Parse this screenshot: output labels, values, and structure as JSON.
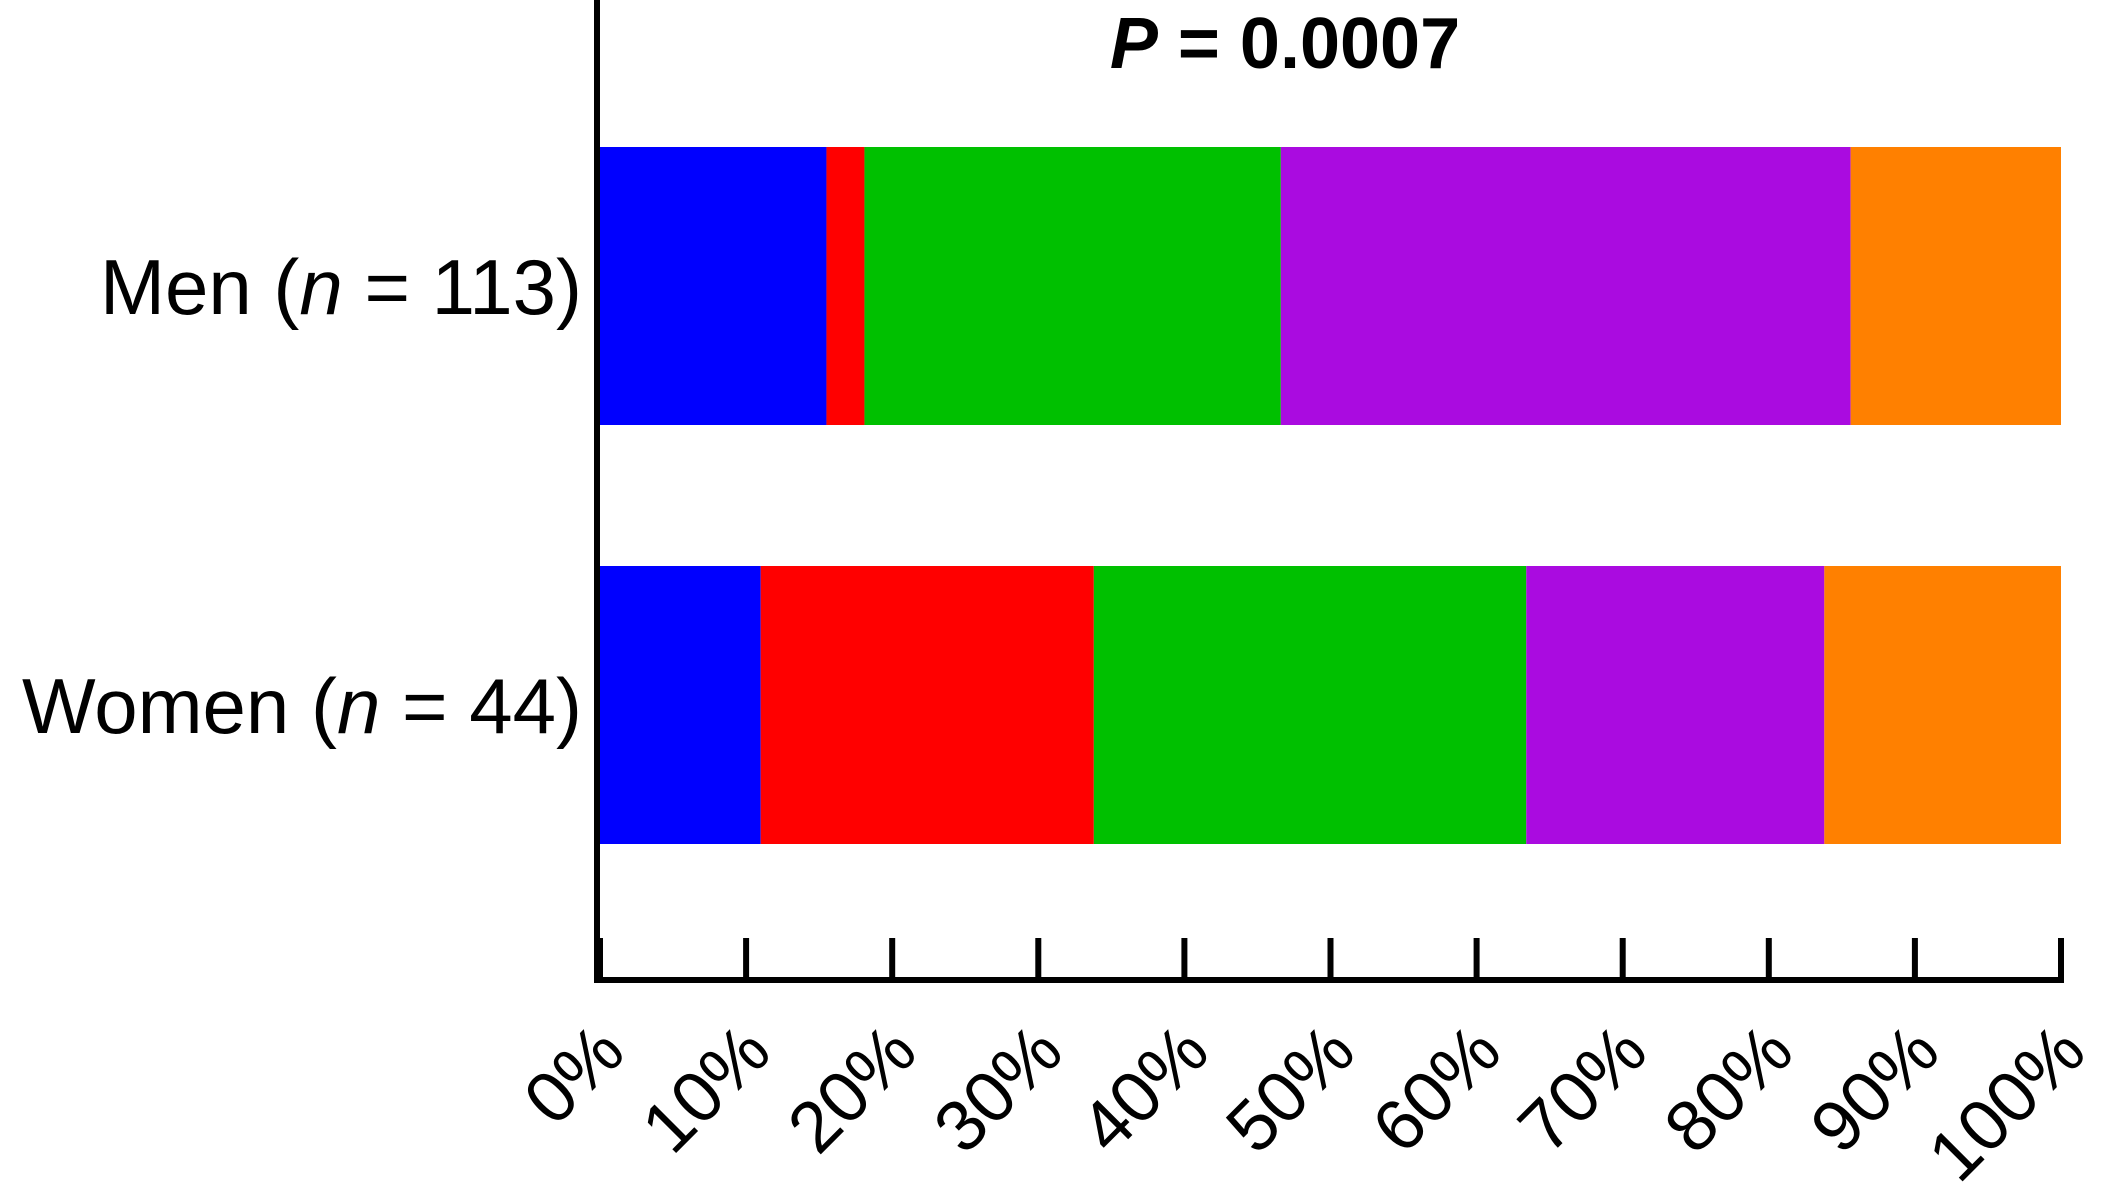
{
  "chart_data": {
    "type": "bar",
    "orientation": "horizontal",
    "stacked": true,
    "title": "",
    "annotation": {
      "p_symbol": "P",
      "p_value_text": "= 0.0007"
    },
    "categories": [
      {
        "prefix": "Men (",
        "n_symbol": "n",
        "suffix": " = 113)"
      },
      {
        "prefix": "Women (",
        "n_symbol": "n",
        "suffix": " = 44)"
      }
    ],
    "series": [
      {
        "color": "#0000FF",
        "values": [
          15.5,
          11.0
        ]
      },
      {
        "color": "#FF0000",
        "values": [
          2.6,
          22.8
        ]
      },
      {
        "color": "#00C000",
        "values": [
          28.5,
          29.6
        ]
      },
      {
        "color": "#AA0BE0",
        "values": [
          39.0,
          20.4
        ]
      },
      {
        "color": "#FF8000",
        "values": [
          14.4,
          16.2
        ]
      }
    ],
    "xlim": [
      0,
      100
    ],
    "xticks": [
      0,
      10,
      20,
      30,
      40,
      50,
      60,
      70,
      80,
      90,
      100
    ],
    "xtick_labels": [
      "0%",
      "10%",
      "20%",
      "30%",
      "40%",
      "50%",
      "60%",
      "70%",
      "80%",
      "90%",
      "100%"
    ],
    "xlabel": "",
    "ylabel": "",
    "grid": false,
    "legend": "none"
  }
}
